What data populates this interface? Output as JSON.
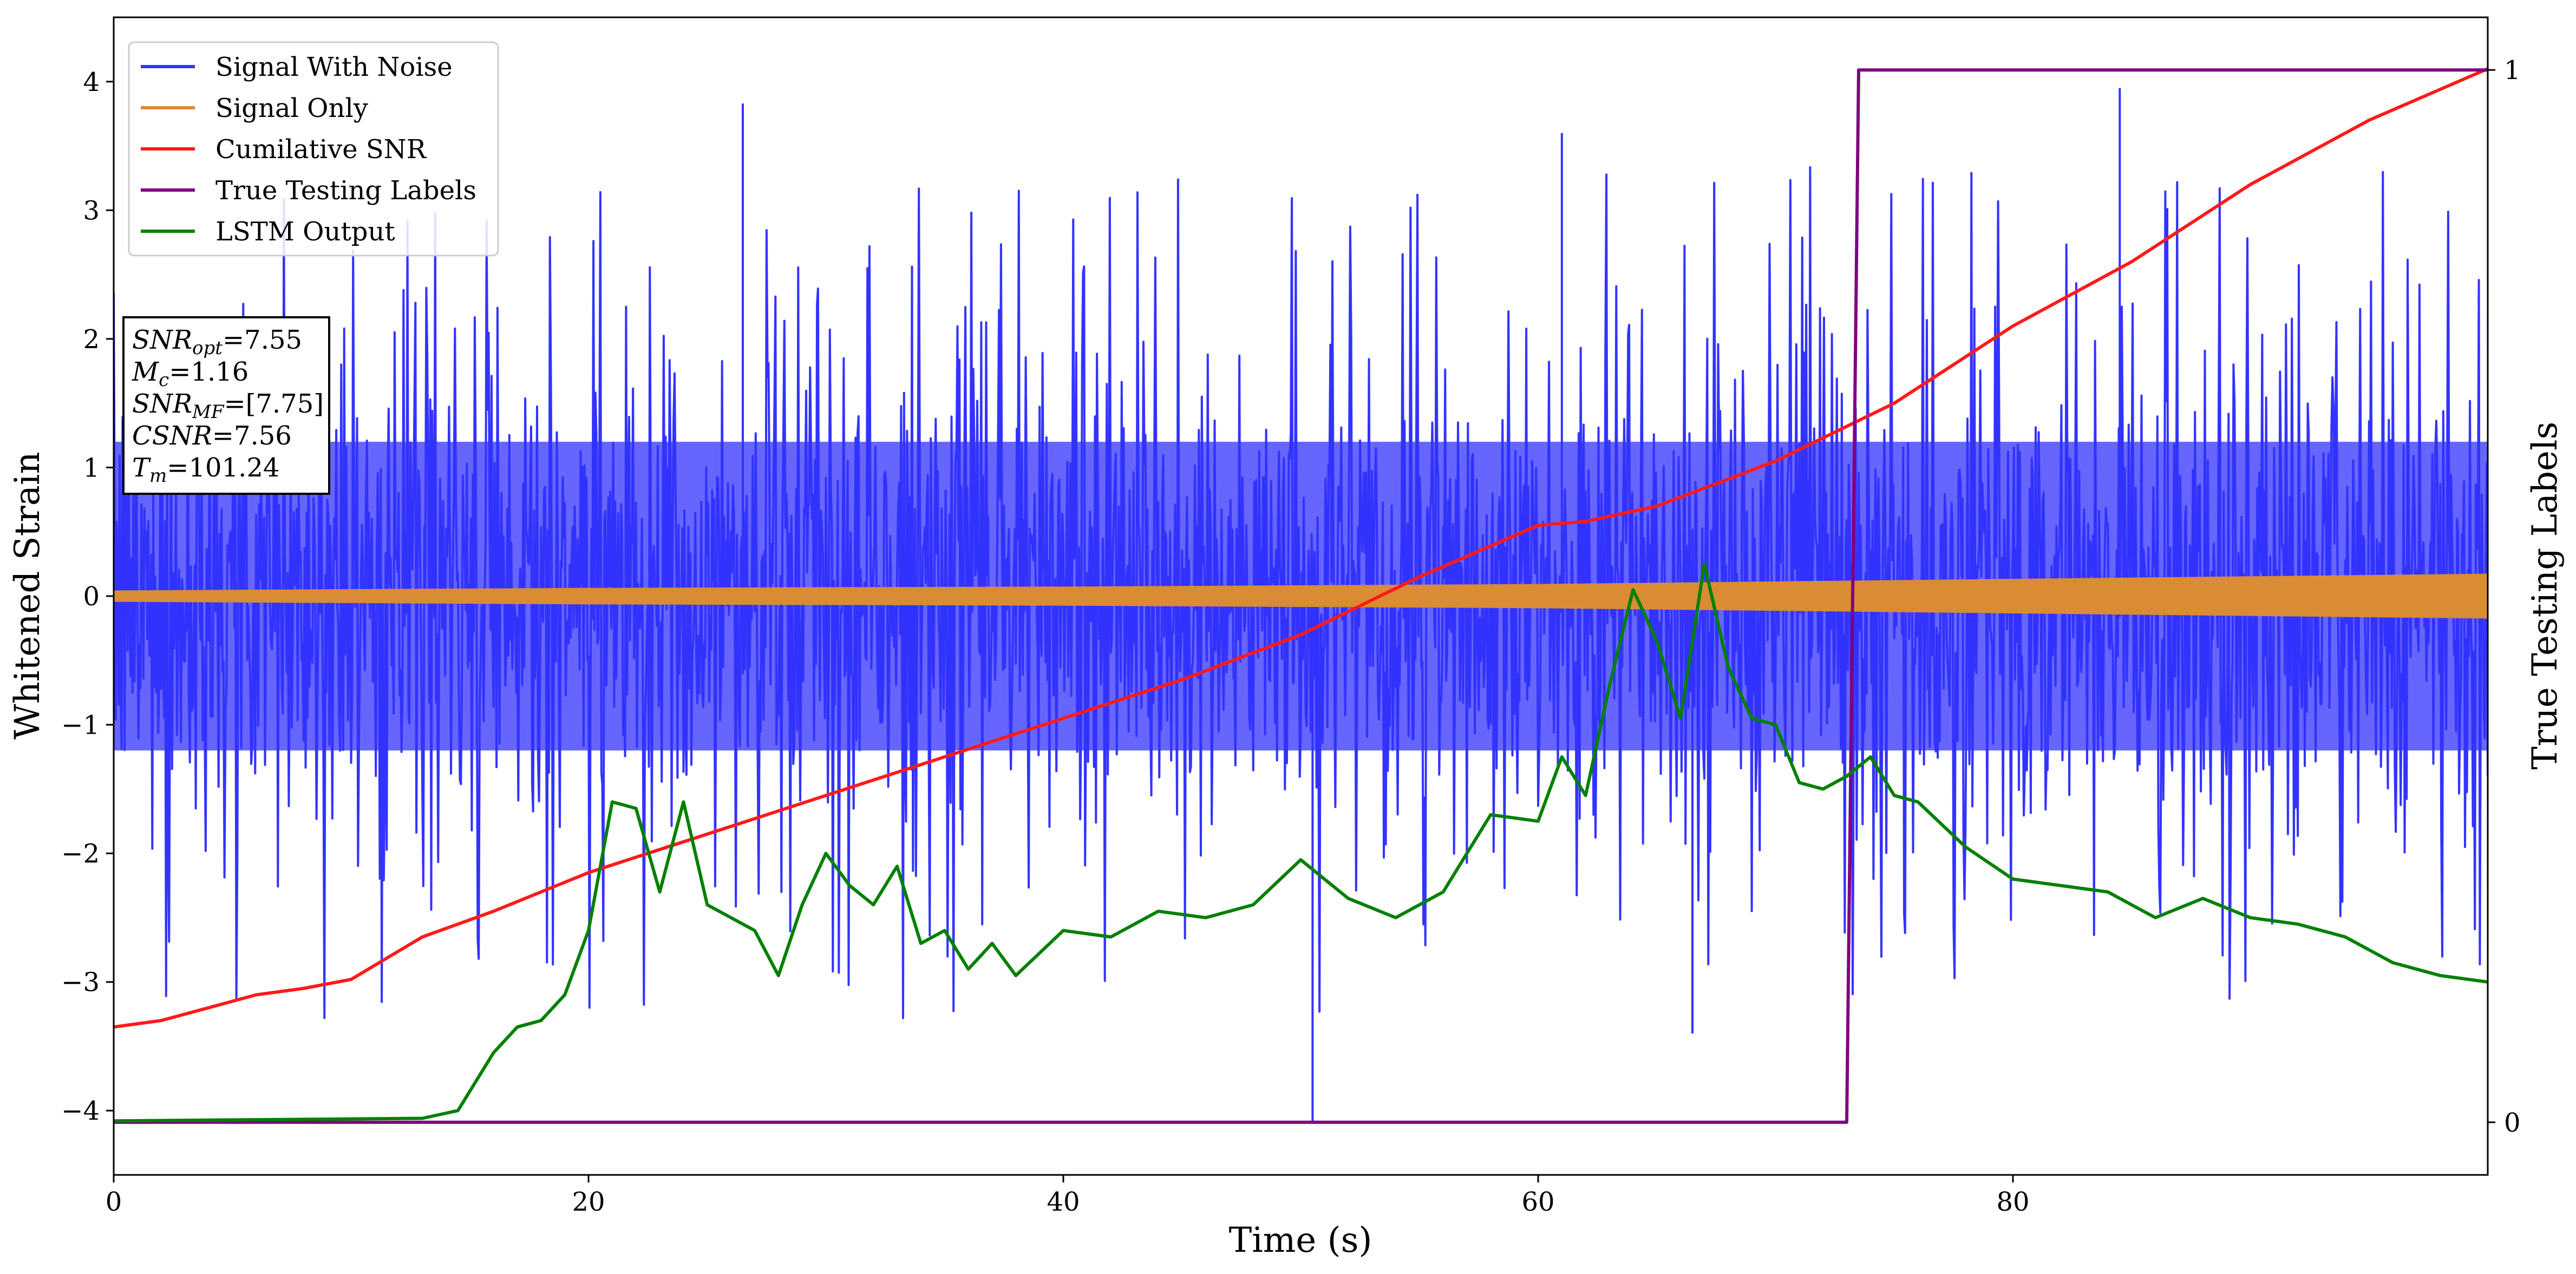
{
  "chart_data": {
    "type": "line",
    "x_axis": {
      "label": "Time (s)",
      "range": [
        0,
        100
      ],
      "ticks": [
        0,
        20,
        40,
        60,
        80
      ]
    },
    "y_axis_left": {
      "label": "Whitened Strain",
      "range": [
        -4.5,
        4.5
      ],
      "ticks": [
        -4,
        -3,
        -2,
        -1,
        0,
        1,
        2,
        3,
        4
      ]
    },
    "y_axis_right": {
      "label": "True Testing Labels",
      "range": [
        -0.05,
        1.05
      ],
      "ticks": [
        0,
        1
      ]
    },
    "legend": {
      "placement": "top-left",
      "entries": [
        "Signal With Noise",
        "Signal Only",
        "Cumilative SNR",
        "True Testing Labels",
        "LSTM Output"
      ]
    },
    "annotation_box": {
      "lines": [
        {
          "symbol": "SNR",
          "sub": "opt",
          "value": "=7.55"
        },
        {
          "symbol": "M",
          "sub": "c",
          "value": "=1.16"
        },
        {
          "symbol": "SNR",
          "sub": "MF",
          "value": "=[7.75]"
        },
        {
          "symbol": "CSNR",
          "sub": "",
          "value": "=7.56"
        },
        {
          "symbol": "T",
          "sub": "m",
          "value": "=101.24"
        }
      ]
    },
    "colors": {
      "noise": "#3333ff",
      "signal": "#d98c33",
      "snr": "#ff1a1a",
      "labels": "#800080",
      "lstm": "#008000"
    },
    "series": [
      {
        "name": "Signal With Noise",
        "kind": "noise",
        "x_range": [
          0,
          100
        ],
        "envelope_percentile": {
          "lower": -1.2,
          "upper": 1.2
        },
        "spike_extremes": {
          "max": 3.83,
          "min": -4.1
        }
      },
      {
        "name": "Signal Only",
        "kind": "band",
        "x": [
          0,
          20,
          40,
          60,
          70,
          80,
          90,
          100
        ],
        "amplitude": [
          0.04,
          0.06,
          0.07,
          0.09,
          0.11,
          0.13,
          0.15,
          0.17
        ]
      },
      {
        "name": "Cumilative SNR",
        "y_axis": "left",
        "x": [
          0,
          2,
          4,
          6,
          8,
          10,
          13,
          16,
          20,
          25,
          30,
          35,
          40,
          45,
          50,
          55,
          60,
          62,
          65,
          70,
          75,
          80,
          85,
          90,
          95,
          100
        ],
        "y": [
          -3.35,
          -3.3,
          -3.2,
          -3.1,
          -3.05,
          -2.98,
          -2.65,
          -2.45,
          -2.15,
          -1.85,
          -1.55,
          -1.25,
          -0.95,
          -0.65,
          -0.3,
          0.15,
          0.55,
          0.58,
          0.7,
          1.05,
          1.5,
          2.1,
          2.6,
          3.2,
          3.7,
          4.1
        ]
      },
      {
        "name": "True Testing Labels",
        "y_axis": "right",
        "x": [
          0,
          73,
          73.5,
          100
        ],
        "y": [
          0,
          0,
          1,
          1
        ]
      },
      {
        "name": "LSTM Output",
        "y_axis": "left",
        "x": [
          0,
          13,
          14.5,
          16,
          17,
          18,
          19,
          20,
          21,
          22,
          23,
          24,
          25,
          26,
          27,
          28,
          29,
          30,
          31,
          32,
          33,
          34,
          35,
          36,
          37,
          38,
          40,
          42,
          44,
          46,
          48,
          50,
          52,
          54,
          56,
          58,
          60,
          61,
          62,
          63,
          64,
          65,
          66,
          67,
          68,
          69,
          70,
          71,
          72,
          73,
          74,
          75,
          76,
          78,
          80,
          82,
          84,
          86,
          88,
          90,
          92,
          94,
          96,
          98,
          100
        ],
        "y": [
          -4.08,
          -4.06,
          -4.0,
          -3.55,
          -3.35,
          -3.3,
          -3.1,
          -2.6,
          -1.6,
          -1.65,
          -2.3,
          -1.6,
          -2.4,
          -2.5,
          -2.6,
          -2.95,
          -2.4,
          -2.0,
          -2.25,
          -2.4,
          -2.1,
          -2.7,
          -2.6,
          -2.9,
          -2.7,
          -2.95,
          -2.6,
          -2.65,
          -2.45,
          -2.5,
          -2.4,
          -2.05,
          -2.35,
          -2.5,
          -2.3,
          -1.7,
          -1.75,
          -1.25,
          -1.55,
          -0.7,
          0.05,
          -0.35,
          -0.95,
          0.25,
          -0.55,
          -0.95,
          -1.0,
          -1.45,
          -1.5,
          -1.4,
          -1.25,
          -1.55,
          -1.6,
          -1.95,
          -2.2,
          -2.25,
          -2.3,
          -2.5,
          -2.35,
          -2.5,
          -2.55,
          -2.65,
          -2.85,
          -2.95,
          -3.0
        ]
      }
    ]
  }
}
